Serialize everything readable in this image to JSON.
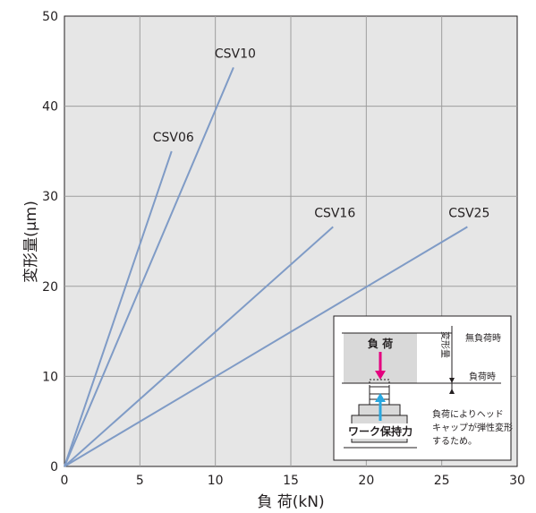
{
  "chart_data": {
    "type": "line",
    "title": "",
    "xlabel": "負 荷(kN)",
    "ylabel": "変形量(μm)",
    "xlim": [
      0,
      30
    ],
    "ylim": [
      0,
      50
    ],
    "x_ticks": [
      "0",
      "5",
      "10",
      "15",
      "20",
      "25",
      "30"
    ],
    "y_ticks": [
      "0",
      "10",
      "20",
      "30",
      "40",
      "50"
    ],
    "grid": true,
    "legend": "none (series labeled at line ends)",
    "line_color": "#7f9bc6",
    "series": [
      {
        "name": "CSV06",
        "x": [
          0,
          7.1
        ],
        "y": [
          0,
          35
        ]
      },
      {
        "name": "CSV10",
        "x": [
          0,
          11.2
        ],
        "y": [
          0,
          44.3
        ]
      },
      {
        "name": "CSV16",
        "x": [
          0,
          17.8
        ],
        "y": [
          0,
          26.6
        ]
      },
      {
        "name": "CSV25",
        "x": [
          0,
          26.7
        ],
        "y": [
          0,
          26.6
        ]
      }
    ],
    "inset": {
      "load_label": "負 荷",
      "deflection_label": "変形量",
      "no_load_label": "無負荷時",
      "loaded_label": "負荷時",
      "holding_force_label": "ワーク保持力",
      "note_lines": [
        "負荷によりヘッド",
        "キャップが弾性変形",
        "するため。"
      ],
      "load_arrow_color": "#e4007f",
      "force_arrow_color": "#29a8e0"
    }
  }
}
